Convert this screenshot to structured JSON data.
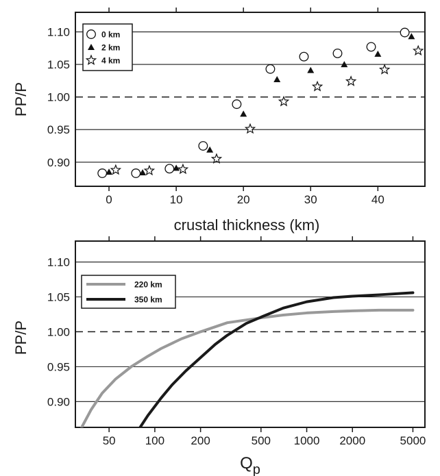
{
  "chart_data": [
    {
      "type": "scatter",
      "xlabel": "crustal thickness (km)",
      "ylabel": "PP/P",
      "xlim": [
        -5,
        47
      ],
      "ylim": [
        0.863,
        1.13
      ],
      "x_ticks": [
        0,
        10,
        20,
        30,
        40
      ],
      "x_tick_labels": [
        "0",
        "10",
        "20",
        "30",
        "40"
      ],
      "y_ticks": [
        0.9,
        0.95,
        1.0,
        1.05,
        1.1
      ],
      "y_tick_labels": [
        "0.90",
        "0.95",
        "1.00",
        "1.05",
        "1.10"
      ],
      "grid": "horizontal",
      "reference_line": 1.0,
      "legend_position": "top-left",
      "series": [
        {
          "name": "0 km",
          "marker": "circle",
          "color": "#111111",
          "x": [
            -1,
            4,
            9,
            14,
            19,
            24,
            29,
            34,
            39,
            44
          ],
          "y": [
            0.883,
            0.883,
            0.89,
            0.925,
            0.989,
            1.043,
            1.062,
            1.067,
            1.077,
            1.099
          ]
        },
        {
          "name": "2 km",
          "marker": "triangle",
          "color": "#111111",
          "x": [
            0,
            5,
            10,
            15,
            20,
            25,
            30,
            35,
            40,
            45
          ],
          "y": [
            0.885,
            0.884,
            0.891,
            0.919,
            0.974,
            1.027,
            1.041,
            1.05,
            1.066,
            1.093
          ]
        },
        {
          "name": "4 km",
          "marker": "star",
          "color": "#111111",
          "x": [
            1,
            6,
            11,
            16,
            21,
            26,
            31,
            36,
            41,
            46
          ],
          "y": [
            0.888,
            0.887,
            0.889,
            0.905,
            0.951,
            0.993,
            1.016,
            1.024,
            1.042,
            1.071
          ]
        }
      ]
    },
    {
      "type": "line",
      "xlabel": "Q",
      "xlabel_subscript": "p",
      "ylabel": "PP/P",
      "x_scale": "log",
      "xlim": [
        30,
        6000
      ],
      "ylim": [
        0.863,
        1.13
      ],
      "x_ticks": [
        50,
        100,
        200,
        500,
        1000,
        2000,
        5000
      ],
      "x_tick_labels": [
        "50",
        "100",
        "200",
        "500",
        "1000",
        "2000",
        "5000"
      ],
      "y_ticks": [
        0.9,
        0.95,
        1.0,
        1.05,
        1.1
      ],
      "y_tick_labels": [
        "0.90",
        "0.95",
        "1.00",
        "1.05",
        "1.10"
      ],
      "grid": "horizontal",
      "reference_line": 1.0,
      "legend_position": "top-left",
      "series": [
        {
          "name": "220 km",
          "color": "#999999",
          "x": [
            33,
            38,
            45,
            55,
            70,
            90,
            110,
            150,
            200,
            300,
            500,
            700,
            1000,
            1500,
            2000,
            3000,
            5000
          ],
          "y": [
            0.863,
            0.888,
            0.912,
            0.932,
            0.95,
            0.965,
            0.976,
            0.99,
            1.0,
            1.013,
            1.02,
            1.024,
            1.027,
            1.029,
            1.03,
            1.031,
            1.031
          ]
        },
        {
          "name": "350 km",
          "color": "#1a1a1a",
          "x": [
            80,
            90,
            110,
            130,
            160,
            200,
            250,
            300,
            400,
            500,
            700,
            1000,
            1500,
            2000,
            3000,
            5000
          ],
          "y": [
            0.863,
            0.88,
            0.905,
            0.924,
            0.944,
            0.963,
            0.982,
            0.995,
            1.012,
            1.021,
            1.034,
            1.043,
            1.049,
            1.051,
            1.053,
            1.056
          ]
        }
      ]
    }
  ]
}
